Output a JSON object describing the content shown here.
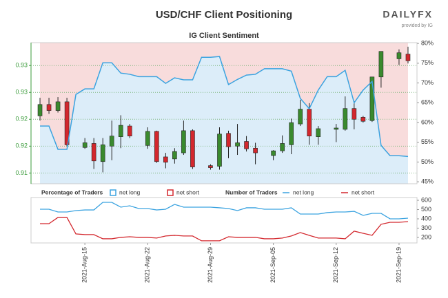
{
  "brand": {
    "name": "DAILYFX",
    "tagline": "provided by IG"
  },
  "chart_data": [
    {
      "type": "candlestick",
      "title": "USD/CHF Client Positioning",
      "subtitle": "IG Client Sentiment",
      "x": [
        "2021-08-10",
        "2021-08-11",
        "2021-08-12",
        "2021-08-13",
        "2021-08-15",
        "2021-08-16",
        "2021-08-17",
        "2021-08-18",
        "2021-08-19",
        "2021-08-20",
        "2021-08-22",
        "2021-08-23",
        "2021-08-24",
        "2021-08-25",
        "2021-08-26",
        "2021-08-27",
        "2021-08-29",
        "2021-08-30",
        "2021-08-31",
        "2021-09-01",
        "2021-09-02",
        "2021-09-03",
        "2021-09-05",
        "2021-09-06",
        "2021-09-07",
        "2021-09-08",
        "2021-09-09",
        "2021-09-10",
        "2021-09-12",
        "2021-09-13",
        "2021-09-14",
        "2021-09-15",
        "2021-09-16",
        "2021-09-17",
        "2021-09-19",
        "2021-09-20"
      ],
      "open": [
        0.9225,
        0.9242,
        0.9233,
        0.9246,
        0.9178,
        0.9184,
        0.9157,
        0.918,
        0.9194,
        0.921,
        0.9181,
        0.9202,
        0.9164,
        0.9161,
        0.917,
        0.9203,
        0.9151,
        0.915,
        0.9199,
        0.918,
        0.9187,
        0.9177,
        0.9166,
        0.9173,
        0.9182,
        0.9213,
        0.9235,
        0.9194,
        0.9205,
        0.9205,
        0.9236,
        0.9223,
        0.9218,
        0.9283,
        0.931,
        0.9317
      ],
      "high": [
        0.9252,
        0.9252,
        0.9253,
        0.9252,
        0.9192,
        0.9192,
        0.9192,
        0.9218,
        0.9226,
        0.9213,
        0.9208,
        0.9203,
        0.917,
        0.9177,
        0.9218,
        0.9205,
        0.9153,
        0.9208,
        0.9203,
        0.9213,
        0.9195,
        0.9185,
        0.9174,
        0.9196,
        0.9221,
        0.9249,
        0.9244,
        0.921,
        0.9213,
        0.9254,
        0.9247,
        0.9225,
        0.9283,
        0.9321,
        0.9324,
        0.9328
      ],
      "low": [
        0.9218,
        0.9228,
        0.923,
        0.918,
        0.9176,
        0.9146,
        0.9141,
        0.9159,
        0.9177,
        0.9192,
        0.9176,
        0.9155,
        0.9147,
        0.9154,
        0.9167,
        0.9146,
        0.9145,
        0.9145,
        0.9162,
        0.9167,
        0.9172,
        0.9153,
        0.9159,
        0.917,
        0.9168,
        0.921,
        0.9182,
        0.9182,
        0.9186,
        0.9203,
        0.9205,
        0.9215,
        0.9216,
        0.9267,
        0.9301,
        0.9303
      ],
      "close": [
        0.9242,
        0.9233,
        0.9246,
        0.9182,
        0.9185,
        0.9158,
        0.9182,
        0.9195,
        0.9211,
        0.9195,
        0.9202,
        0.9157,
        0.9156,
        0.9172,
        0.9203,
        0.9149,
        0.9148,
        0.9198,
        0.9179,
        0.9185,
        0.9176,
        0.917,
        0.9173,
        0.9184,
        0.9215,
        0.9235,
        0.9195,
        0.9206,
        0.9207,
        0.9236,
        0.922,
        0.9217,
        0.9283,
        0.9321,
        0.9319,
        0.9307
      ],
      "up_color": "#3a8a2e",
      "down_color": "#d3272d",
      "xlim": [
        "2021-08-09",
        "2021-09-21"
      ],
      "ylim": [
        0.9124,
        0.9334
      ],
      "yticks": [
        {
          "value": 0.914,
          "label": "0.91"
        },
        {
          "value": 0.918,
          "label": "0.92"
        },
        {
          "value": 0.922,
          "label": "0.92"
        },
        {
          "value": 0.926,
          "label": "0.93"
        },
        {
          "value": 0.93,
          "label": "0.93"
        }
      ],
      "y2lim": [
        44.5,
        80.2
      ],
      "y2ticks": [
        {
          "value": 45,
          "label": "45%"
        },
        {
          "value": 50,
          "label": "50%"
        },
        {
          "value": 55,
          "label": "55%"
        },
        {
          "value": 60,
          "label": "60%"
        },
        {
          "value": 65,
          "label": "65%"
        },
        {
          "value": 70,
          "label": "70%"
        },
        {
          "value": 75,
          "label": "75%"
        },
        {
          "value": 80,
          "label": "80%"
        }
      ],
      "grid": true,
      "legend_title": "Percentage of Traders",
      "legend": [
        {
          "name": "net long",
          "color": "#dcedf9"
        },
        {
          "name": "net short",
          "color": "#f8dcdc"
        }
      ],
      "series": [
        {
          "name": "net long",
          "color": "#3ba3e0",
          "axis": "y2",
          "x": [
            "2021-08-10",
            "2021-08-11",
            "2021-08-12",
            "2021-08-13",
            "2021-08-14",
            "2021-08-15",
            "2021-08-16",
            "2021-08-17",
            "2021-08-18",
            "2021-08-19",
            "2021-08-20",
            "2021-08-21",
            "2021-08-22",
            "2021-08-23",
            "2021-08-24",
            "2021-08-25",
            "2021-08-26",
            "2021-08-27",
            "2021-08-28",
            "2021-08-29",
            "2021-08-30",
            "2021-08-31",
            "2021-09-01",
            "2021-09-02",
            "2021-09-03",
            "2021-09-04",
            "2021-09-05",
            "2021-09-06",
            "2021-09-07",
            "2021-09-08",
            "2021-09-09",
            "2021-09-10",
            "2021-09-11",
            "2021-09-12",
            "2021-09-13",
            "2021-09-14",
            "2021-09-15",
            "2021-09-16",
            "2021-09-17",
            "2021-09-18",
            "2021-09-19",
            "2021-09-20"
          ],
          "values": [
            59.1,
            59.1,
            53.2,
            53.2,
            67.1,
            68.5,
            68.5,
            75.1,
            75.1,
            72.5,
            72.2,
            71.6,
            71.6,
            71.6,
            69.9,
            71.3,
            70.8,
            70.8,
            76.5,
            76.5,
            76.7,
            69.6,
            70.9,
            72.0,
            72.2,
            73.6,
            73.6,
            73.6,
            73.0,
            66.1,
            63.5,
            68.2,
            71.6,
            71.6,
            73.2,
            65.0,
            68.2,
            70.4,
            54.2,
            51.6,
            51.6,
            51.4
          ]
        }
      ]
    },
    {
      "type": "line",
      "legend_title": "Number of Traders",
      "x": [
        "2021-08-10",
        "2021-08-11",
        "2021-08-12",
        "2021-08-13",
        "2021-08-14",
        "2021-08-15",
        "2021-08-16",
        "2021-08-17",
        "2021-08-18",
        "2021-08-19",
        "2021-08-20",
        "2021-08-21",
        "2021-08-22",
        "2021-08-23",
        "2021-08-24",
        "2021-08-25",
        "2021-08-26",
        "2021-08-27",
        "2021-08-28",
        "2021-08-29",
        "2021-08-30",
        "2021-08-31",
        "2021-09-01",
        "2021-09-02",
        "2021-09-03",
        "2021-09-04",
        "2021-09-05",
        "2021-09-06",
        "2021-09-07",
        "2021-09-08",
        "2021-09-09",
        "2021-09-10",
        "2021-09-11",
        "2021-09-12",
        "2021-09-13",
        "2021-09-14",
        "2021-09-15",
        "2021-09-16",
        "2021-09-17",
        "2021-09-18",
        "2021-09-19",
        "2021-09-20"
      ],
      "xlim": [
        "2021-08-09",
        "2021-09-21"
      ],
      "xticks": [
        {
          "value": "2021-08-15",
          "label": "2021-Aug-15"
        },
        {
          "value": "2021-08-22",
          "label": "2021-Aug-22"
        },
        {
          "value": "2021-08-29",
          "label": "2021-Aug-29"
        },
        {
          "value": "2021-09-05",
          "label": "2021-Sep-05"
        },
        {
          "value": "2021-09-12",
          "label": "2021-Sep-12"
        },
        {
          "value": "2021-09-19",
          "label": "2021-Sep-19"
        }
      ],
      "ylim": [
        140,
        630
      ],
      "yticks": [
        200,
        300,
        400,
        500,
        600
      ],
      "series": [
        {
          "name": "net long",
          "color": "#3ba3e0",
          "values": [
            504,
            504,
            474,
            474,
            489,
            496,
            496,
            578,
            578,
            526,
            541,
            511,
            511,
            496,
            504,
            556,
            526,
            526,
            526,
            526,
            519,
            511,
            489,
            519,
            519,
            504,
            504,
            504,
            519,
            452,
            452,
            452,
            467,
            474,
            474,
            481,
            437,
            459,
            459,
            400,
            400,
            407
          ]
        },
        {
          "name": "net short",
          "color": "#d3272d",
          "values": [
            348,
            348,
            415,
            415,
            237,
            230,
            230,
            185,
            185,
            200,
            207,
            200,
            200,
            193,
            215,
            222,
            215,
            215,
            163,
            163,
            163,
            207,
            200,
            200,
            200,
            185,
            185,
            193,
            215,
            252,
            222,
            193,
            193,
            193,
            185,
            267,
            244,
            222,
            341,
            363,
            363,
            370
          ]
        }
      ]
    }
  ]
}
